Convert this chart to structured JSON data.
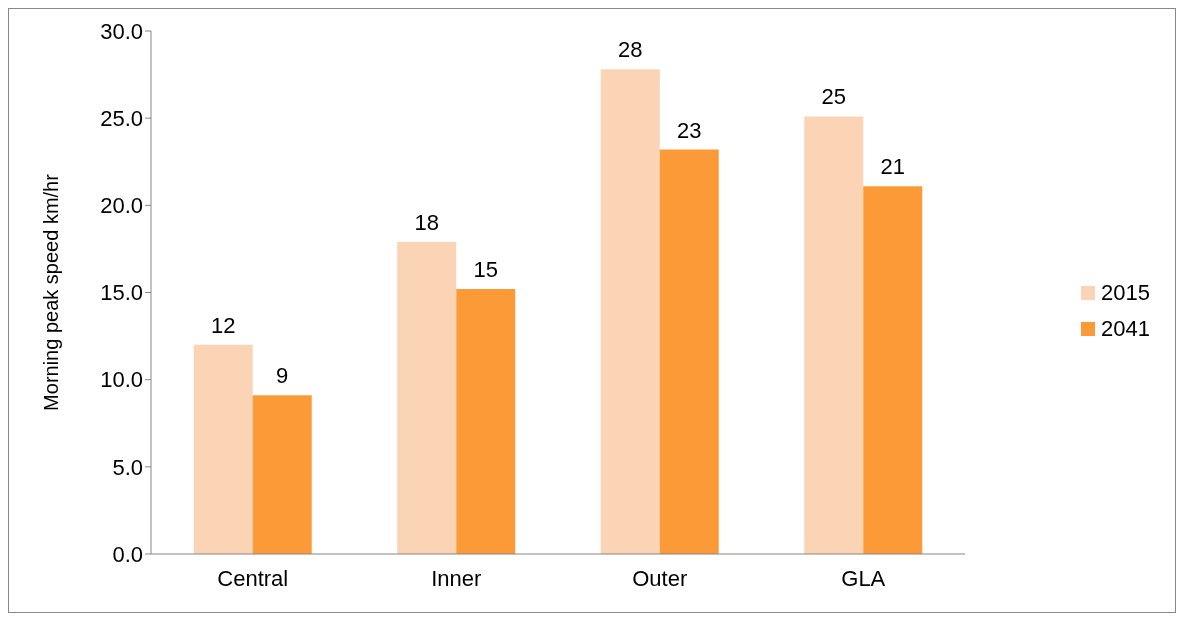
{
  "chart_data": {
    "type": "bar",
    "ylabel": "Morning peak speed km/hr",
    "categories": [
      "Central",
      "Inner",
      "Outer",
      "GLA"
    ],
    "series": [
      {
        "name": "2015",
        "color": "#fad4b4",
        "values": [
          12.0,
          17.9,
          27.8,
          25.1
        ],
        "value_labels": [
          "12",
          "18",
          "28",
          "25"
        ]
      },
      {
        "name": "2041",
        "color": "#fd9a38",
        "values": [
          9.1,
          15.2,
          23.2,
          21.1
        ],
        "value_labels": [
          "9",
          "15",
          "23",
          "21"
        ]
      }
    ],
    "ylim": [
      0,
      30
    ],
    "yticks": [
      {
        "value": 0,
        "label": "0.0"
      },
      {
        "value": 5,
        "label": "5.0"
      },
      {
        "value": 10,
        "label": "10.0"
      },
      {
        "value": 15,
        "label": "15.0"
      },
      {
        "value": 20,
        "label": "20.0"
      },
      {
        "value": 25,
        "label": "25.0"
      },
      {
        "value": 30,
        "label": "30.0"
      }
    ],
    "grid": false,
    "legend": "right"
  }
}
